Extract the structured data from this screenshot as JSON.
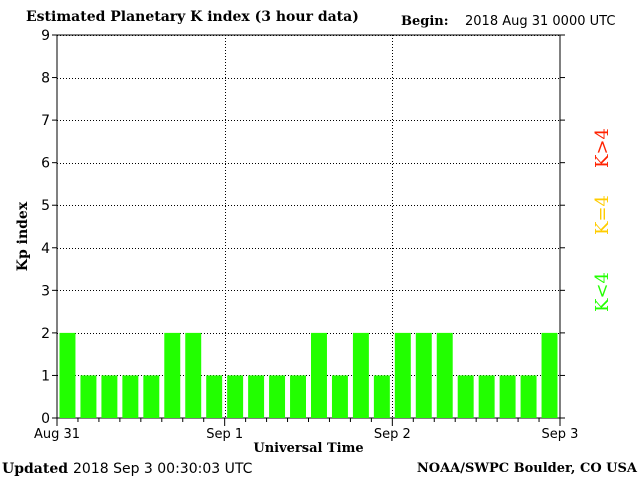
{
  "header": {
    "title": "Estimated Planetary K index (3 hour data)",
    "begin_label": "Begin:",
    "begin_value": "2018 Aug 31 0000 UTC"
  },
  "footer": {
    "updated_label": "Updated",
    "updated_value": "2018 Sep  3 00:30:03 UTC",
    "credit": "NOAA/SWPC Boulder, CO USA"
  },
  "legend": [
    {
      "label": "K>4",
      "color": "#ff2200"
    },
    {
      "label": "K=4",
      "color": "#ffcc00"
    },
    {
      "label": "K<4",
      "color": "#22ff00"
    }
  ],
  "chart_data": {
    "type": "bar",
    "title": "Estimated Planetary K index (3 hour data)",
    "xlabel": "Universal Time",
    "ylabel": "Kp index",
    "ylim": [
      0,
      9
    ],
    "yticks": [
      "0",
      "1",
      "2",
      "3",
      "4",
      "5",
      "6",
      "7",
      "8",
      "9"
    ],
    "xtick_labels": [
      "Aug 31",
      "Sep 1",
      "Sep 2",
      "Sep 3"
    ],
    "grid": true,
    "bar_color": "#22ff00",
    "values": [
      2,
      1,
      1,
      1,
      1,
      2,
      2,
      1,
      1,
      1,
      1,
      1,
      2,
      1,
      2,
      1,
      2,
      2,
      2,
      1,
      1,
      1,
      1,
      2
    ]
  }
}
